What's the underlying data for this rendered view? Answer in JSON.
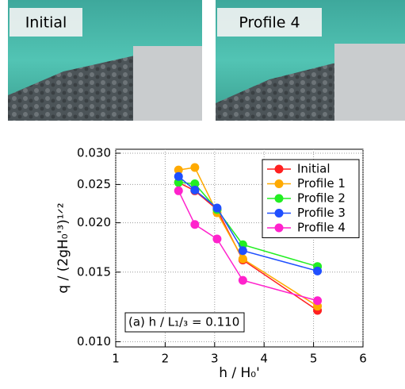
{
  "photos": [
    {
      "label": "Initial"
    },
    {
      "label": "Profile 4"
    }
  ],
  "chart_data": {
    "type": "line",
    "log_y": true,
    "grid": true,
    "legend": "upper right",
    "xlabel": "h / H₀'",
    "ylabel": "q / (2gH₀'³)¹ᐟ²",
    "annotation": "(a) h / L₁/₃ = 0.110",
    "xlim": [
      1,
      6
    ],
    "xticks": [
      1,
      2,
      3,
      4,
      5,
      6
    ],
    "ylim": [
      0.0097,
      0.0307
    ],
    "yticks": [
      {
        "value": 0.01,
        "label": "0.010"
      },
      {
        "value": 0.015,
        "label": "0.015"
      },
      {
        "value": 0.02,
        "label": "0.020"
      },
      {
        "value": 0.025,
        "label": "0.025"
      },
      {
        "value": 0.03,
        "label": "0.030"
      }
    ],
    "x": [
      2.27,
      2.6,
      3.05,
      3.57,
      5.08
    ],
    "series": [
      {
        "name": "Initial",
        "color": "#ff2020",
        "values": [
          0.0253,
          0.0241,
          0.0216,
          0.0161,
          0.012
        ]
      },
      {
        "name": "Profile 1",
        "color": "#ffaa00",
        "values": [
          0.0272,
          0.0276,
          0.0212,
          0.0162,
          0.0123
        ]
      },
      {
        "name": "Profile 2",
        "color": "#22ee22",
        "values": [
          0.0253,
          0.0251,
          0.0216,
          0.0176,
          0.0155
        ]
      },
      {
        "name": "Profile 3",
        "color": "#1f4fff",
        "values": [
          0.0262,
          0.0242,
          0.0218,
          0.017,
          0.0151
        ]
      },
      {
        "name": "Profile 4",
        "color": "#ff22cc",
        "values": [
          0.0241,
          0.0198,
          0.0182,
          0.0143,
          0.0127
        ]
      }
    ]
  }
}
